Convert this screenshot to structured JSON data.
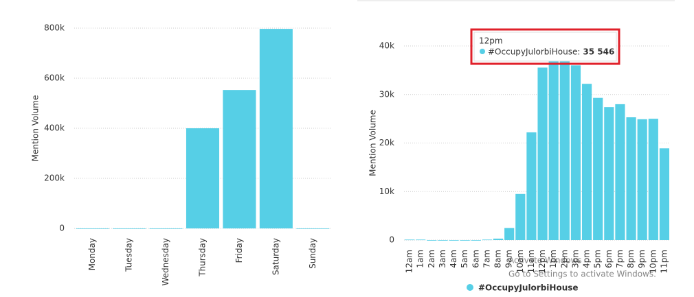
{
  "chart_data": [
    {
      "type": "bar",
      "y_label": "Mention Volume",
      "categories": [
        "Monday",
        "Tuesday",
        "Wednesday",
        "Thursday",
        "Friday",
        "Saturday",
        "Sunday"
      ],
      "values": [
        0,
        0,
        0,
        400000,
        553000,
        797000,
        0
      ],
      "color": "#56cfe6",
      "ylim": [
        0,
        800000
      ],
      "yticks": [
        0,
        {
          "value": 200000,
          "label": "200k"
        },
        {
          "value": 400000,
          "label": "400k"
        },
        {
          "value": 600000,
          "label": "600k"
        },
        {
          "value": 800000,
          "label": "800k"
        }
      ],
      "grid": true
    },
    {
      "type": "bar",
      "y_label": "Mention Volume",
      "categories": [
        "12am",
        "1am",
        "2am",
        "3am",
        "4am",
        "5am",
        "6am",
        "7am",
        "8am",
        "9am",
        "10am",
        "11am",
        "12pm",
        "1pm",
        "2pm",
        "3pm",
        "4pm",
        "5pm",
        "6pm",
        "7pm",
        "8pm",
        "9pm",
        "10pm",
        "11pm"
      ],
      "series": [
        {
          "name": "#OccupyJulorbiHouse",
          "color": "#56cfe6",
          "values": [
            100,
            100,
            0,
            0,
            0,
            0,
            0,
            100,
            300,
            2500,
            9500,
            22200,
            35546,
            37000,
            37000,
            36000,
            32200,
            29300,
            27400,
            28000,
            25300,
            24900,
            25000,
            18900
          ]
        }
      ],
      "ylim": [
        0,
        40000
      ],
      "yticks": [
        0,
        {
          "value": 10000,
          "label": "10k"
        },
        {
          "value": 20000,
          "label": "20k"
        },
        {
          "value": 30000,
          "label": "30k"
        },
        {
          "value": 40000,
          "label": "40k"
        }
      ],
      "grid": true,
      "legend": "bottom",
      "tooltip": {
        "category": "12pm",
        "name": "#OccupyJulorbiHouse:",
        "value": 35546,
        "value_label": "35 546"
      }
    }
  ],
  "watermark": {
    "title": "Activate Windows",
    "text": "Go to Settings to activate Windows."
  }
}
